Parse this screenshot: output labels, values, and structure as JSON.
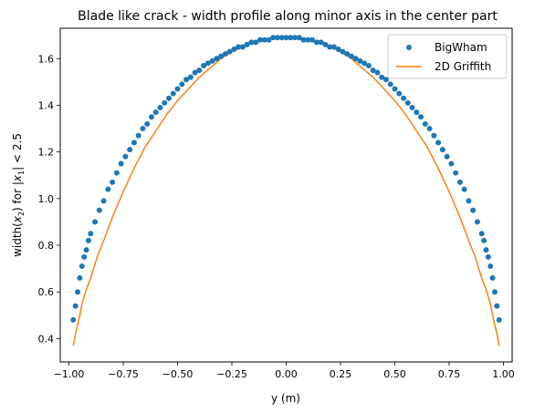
{
  "chart_data": {
    "type": "scatter",
    "title": "Blade like crack - width profile along minor axis in the center part",
    "xlabel": "y (m)",
    "ylabel_prefix": "width(",
    "ylabel_var": "x",
    "ylabel_var_sub": "2",
    "ylabel_mid": ") for |",
    "ylabel_var2": "x",
    "ylabel_var2_sub": "1",
    "ylabel_suffix": "| < 2.5",
    "xlim": [
      -1.04,
      1.04
    ],
    "ylim": [
      0.3,
      1.73
    ],
    "x_ticks": [
      -1.0,
      -0.75,
      -0.5,
      -0.25,
      0.0,
      0.25,
      0.5,
      0.75,
      1.0
    ],
    "x_tick_labels": [
      "−1.00",
      "−0.75",
      "−0.50",
      "−0.25",
      "0.00",
      "0.25",
      "0.50",
      "0.75",
      "1.00"
    ],
    "y_ticks": [
      0.4,
      0.6,
      0.8,
      1.0,
      1.2,
      1.4,
      1.6
    ],
    "y_tick_labels": [
      "0.4",
      "0.6",
      "0.8",
      "1.0",
      "1.2",
      "1.4",
      "1.6"
    ],
    "grid": false,
    "legend_position": "top-right",
    "series": [
      {
        "name": "BigWham",
        "kind": "scatter",
        "color": "#1f77b4",
        "x": [
          -0.98,
          -0.97,
          -0.96,
          -0.95,
          -0.94,
          -0.93,
          -0.92,
          -0.91,
          -0.9,
          -0.88,
          -0.86,
          -0.84,
          -0.82,
          -0.8,
          -0.78,
          -0.76,
          -0.74,
          -0.72,
          -0.7,
          -0.68,
          -0.66,
          -0.64,
          -0.62,
          -0.6,
          -0.58,
          -0.56,
          -0.54,
          -0.52,
          -0.5,
          -0.48,
          -0.46,
          -0.44,
          -0.42,
          -0.4,
          -0.38,
          -0.36,
          -0.34,
          -0.32,
          -0.3,
          -0.28,
          -0.26,
          -0.24,
          -0.22,
          -0.2,
          -0.18,
          -0.16,
          -0.14,
          -0.12,
          -0.1,
          -0.08,
          -0.06,
          -0.04,
          -0.02,
          0.0,
          0.02,
          0.04,
          0.06,
          0.08,
          0.1,
          0.12,
          0.14,
          0.16,
          0.18,
          0.2,
          0.22,
          0.24,
          0.26,
          0.28,
          0.3,
          0.32,
          0.34,
          0.36,
          0.38,
          0.4,
          0.42,
          0.44,
          0.46,
          0.48,
          0.5,
          0.52,
          0.54,
          0.56,
          0.58,
          0.6,
          0.62,
          0.64,
          0.66,
          0.68,
          0.7,
          0.72,
          0.74,
          0.76,
          0.78,
          0.8,
          0.82,
          0.84,
          0.86,
          0.88,
          0.9,
          0.91,
          0.92,
          0.93,
          0.94,
          0.95,
          0.96,
          0.97,
          0.98
        ],
        "values": [
          0.48,
          0.54,
          0.6,
          0.66,
          0.71,
          0.75,
          0.78,
          0.82,
          0.85,
          0.9,
          0.95,
          0.99,
          1.04,
          1.07,
          1.11,
          1.15,
          1.18,
          1.21,
          1.24,
          1.27,
          1.3,
          1.32,
          1.35,
          1.37,
          1.39,
          1.41,
          1.43,
          1.45,
          1.47,
          1.49,
          1.51,
          1.52,
          1.54,
          1.55,
          1.57,
          1.58,
          1.59,
          1.6,
          1.61,
          1.62,
          1.63,
          1.64,
          1.65,
          1.65,
          1.66,
          1.67,
          1.67,
          1.68,
          1.68,
          1.68,
          1.69,
          1.69,
          1.69,
          1.69,
          1.69,
          1.69,
          1.69,
          1.68,
          1.68,
          1.68,
          1.67,
          1.67,
          1.66,
          1.65,
          1.65,
          1.64,
          1.63,
          1.62,
          1.61,
          1.6,
          1.59,
          1.58,
          1.57,
          1.55,
          1.54,
          1.52,
          1.51,
          1.49,
          1.47,
          1.45,
          1.43,
          1.41,
          1.39,
          1.37,
          1.35,
          1.32,
          1.3,
          1.27,
          1.24,
          1.21,
          1.18,
          1.15,
          1.11,
          1.07,
          1.04,
          0.99,
          0.95,
          0.9,
          0.85,
          0.82,
          0.78,
          0.75,
          0.71,
          0.66,
          0.6,
          0.54,
          0.48
        ]
      },
      {
        "name": "2D Griffith",
        "kind": "line",
        "color": "#ff7f0e",
        "x": [
          -0.98,
          -0.97,
          -0.96,
          -0.95,
          -0.94,
          -0.92,
          -0.9,
          -0.87,
          -0.84,
          -0.8,
          -0.75,
          -0.7,
          -0.65,
          -0.6,
          -0.55,
          -0.5,
          -0.45,
          -0.4,
          -0.35,
          -0.3,
          -0.25,
          -0.2,
          -0.15,
          -0.1,
          -0.05,
          0.0,
          0.05,
          0.1,
          0.15,
          0.2,
          0.25,
          0.3,
          0.35,
          0.4,
          0.45,
          0.5,
          0.55,
          0.6,
          0.65,
          0.7,
          0.75,
          0.8,
          0.84,
          0.87,
          0.9,
          0.92,
          0.94,
          0.95,
          0.96,
          0.97,
          0.98
        ],
        "values": [
          0.37,
          0.42,
          0.46,
          0.5,
          0.55,
          0.61,
          0.66,
          0.75,
          0.82,
          0.92,
          1.03,
          1.13,
          1.22,
          1.29,
          1.36,
          1.42,
          1.47,
          1.52,
          1.56,
          1.6,
          1.63,
          1.65,
          1.67,
          1.68,
          1.69,
          1.69,
          1.69,
          1.68,
          1.67,
          1.65,
          1.63,
          1.6,
          1.56,
          1.52,
          1.47,
          1.42,
          1.36,
          1.29,
          1.22,
          1.13,
          1.03,
          0.92,
          0.82,
          0.75,
          0.66,
          0.61,
          0.55,
          0.5,
          0.46,
          0.42,
          0.37
        ]
      }
    ]
  }
}
